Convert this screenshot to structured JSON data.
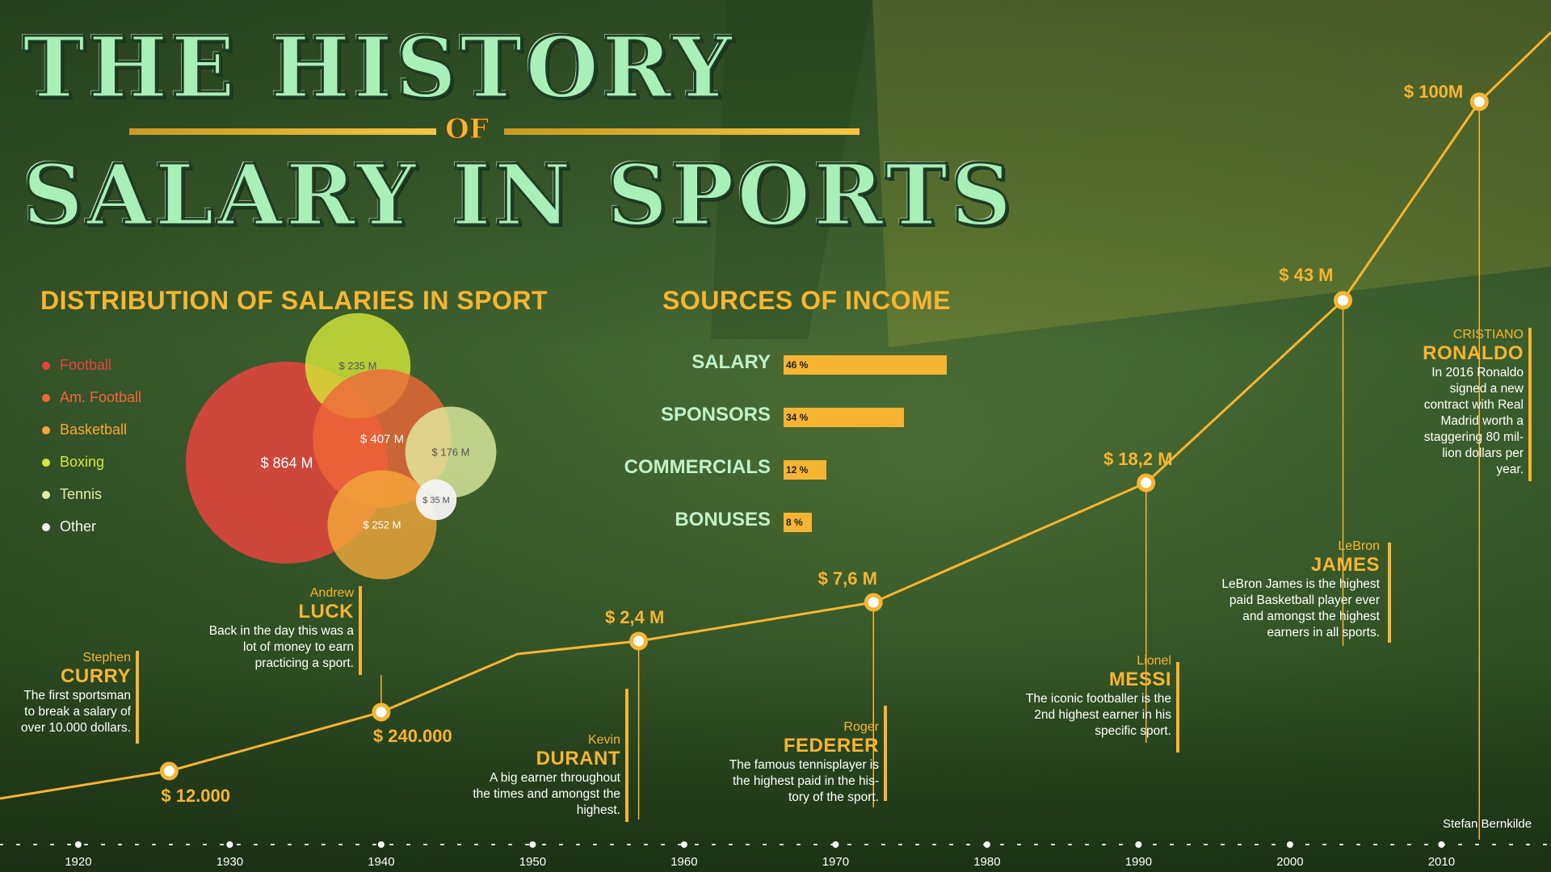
{
  "title": {
    "line1": "THE HISTORY",
    "of": "OF",
    "line2": "SALARY IN SPORTS"
  },
  "credit": "Stefan Bernkilde",
  "colors": {
    "accent": "#f5b533",
    "title": "#a9f0b8",
    "football": "#e8443d",
    "am_football": "#f0673a",
    "basketball": "#f4a93a",
    "boxing": "#d6e83a",
    "tennis": "#e0eea0",
    "other": "#f4f4f4"
  },
  "distribution": {
    "heading": "DISTRIBUTION OF SALARIES IN SPORT",
    "legend": [
      {
        "label": "Football",
        "color": "#e8443d"
      },
      {
        "label": "Am. Football",
        "color": "#f0673a"
      },
      {
        "label": "Basketball",
        "color": "#f4a93a"
      },
      {
        "label": "Boxing",
        "color": "#d6e83a"
      },
      {
        "label": "Tennis",
        "color": "#e0eea0"
      },
      {
        "label": "Other",
        "color": "#f4f4f4"
      }
    ]
  },
  "income": {
    "heading": "SOURCES OF INCOME",
    "items": [
      {
        "label": "SALARY",
        "pct_text": "46 %",
        "value": 46
      },
      {
        "label": "SPONSORS",
        "pct_text": "34 %",
        "value": 34
      },
      {
        "label": "COMMERCIALS",
        "pct_text": "12 %",
        "value": 12
      },
      {
        "label": "BONUSES",
        "pct_text": "8 %",
        "value": 8
      }
    ]
  },
  "athletes": {
    "curry": {
      "first": "Stephen",
      "last": "CURRY",
      "desc": [
        "The first sportsman",
        "to break a salary of",
        "over 10.000 dollars."
      ]
    },
    "luck": {
      "first": "Andrew",
      "last": "LUCK",
      "desc": [
        "Back in the day this was a",
        "lot of money to earn",
        "practicing a sport."
      ]
    },
    "durant": {
      "first": "Kevin",
      "last": "DURANT",
      "desc": [
        "A big earner throughout",
        "the times and amongst the",
        "highest."
      ]
    },
    "federer": {
      "first": "Roger",
      "last": "FEDERER",
      "desc": [
        "The famous tennisplayer is",
        "the highest paid in the his-",
        "tory of the sport."
      ]
    },
    "messi": {
      "first": "Lionel",
      "last": "MESSI",
      "desc": [
        "The iconic footballer is the",
        "2nd highest earner in his",
        "specific sport."
      ]
    },
    "james": {
      "first": "LeBron",
      "last": "JAMES",
      "desc": [
        "LeBron James is the highest",
        "paid Basketball player ever",
        "and amongst the highest",
        "earners in all sports."
      ]
    },
    "ronaldo": {
      "first": "CRISTIANO",
      "last": "RONALDO",
      "desc": [
        "In 2016 Ronaldo",
        "signed a new",
        "contract with Real",
        "Madrid worth a",
        "staggering 80 mil-",
        "lion dollars per",
        "year."
      ]
    }
  },
  "chart_data": [
    {
      "type": "bubble",
      "title": "DISTRIBUTION OF SALARIES IN SPORT",
      "series": [
        {
          "name": "Football",
          "value_label": "$ 864 M",
          "value": 864
        },
        {
          "name": "Am. Football",
          "value_label": "$ 407 M",
          "value": 407
        },
        {
          "name": "Basketball",
          "value_label": "$ 252 M",
          "value": 252
        },
        {
          "name": "Boxing",
          "value_label": "$ 235 M",
          "value": 235
        },
        {
          "name": "Tennis",
          "value_label": "$ 176 M",
          "value": 176
        },
        {
          "name": "Other",
          "value_label": "$ 35 M",
          "value": 35
        }
      ]
    },
    {
      "type": "bar",
      "title": "SOURCES OF INCOME",
      "categories": [
        "SALARY",
        "SPONSORS",
        "COMMERCIALS",
        "BONUSES"
      ],
      "values": [
        46,
        34,
        12,
        8
      ],
      "value_labels": [
        "46 %",
        "34 %",
        "12 %",
        "8 %"
      ],
      "unit": "%"
    },
    {
      "type": "line",
      "title": "THE HISTORY OF SALARY IN SPORTS",
      "x_ticks": [
        1920,
        1930,
        1940,
        1950,
        1960,
        1970,
        1980,
        1990,
        2000,
        2010
      ],
      "xlim": [
        1917.5,
        2013.5
      ],
      "points": [
        {
          "x": 1926,
          "label": "$ 12.000",
          "athlete": "curry",
          "marker": true
        },
        {
          "x": 1940,
          "label": "$ 240.000",
          "athlete": "luck",
          "marker": true
        },
        {
          "x": 1949,
          "label": "",
          "marker": false
        },
        {
          "x": 1957,
          "label": "$ 2,4 M",
          "athlete": "durant",
          "marker": true
        },
        {
          "x": 1972.5,
          "label": "$ 7,6 M",
          "athlete": "federer",
          "marker": true
        },
        {
          "x": 1990.5,
          "label": "$ 18,2 M",
          "athlete": "messi",
          "marker": true
        },
        {
          "x": 2003.5,
          "label": "$ 43 M",
          "athlete": "james",
          "marker": true
        },
        {
          "x": 2012.5,
          "label": "$ 100M",
          "athlete": "ronaldo",
          "marker": true
        }
      ]
    }
  ]
}
